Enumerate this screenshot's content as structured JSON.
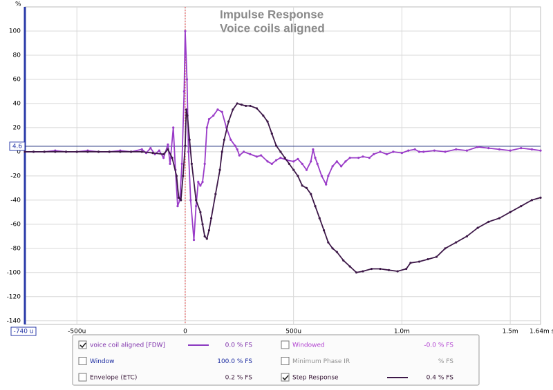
{
  "chart_data": {
    "type": "line",
    "title": "Impulse Response",
    "subtitle": "Voice coils aligned",
    "y_unit": "%",
    "x_start_label": "-740 u",
    "x_end_label": "1.64m s",
    "cursor_value": 4.6,
    "xlim": [
      -740,
      1640
    ],
    "ylim": [
      -143,
      120
    ],
    "xticks": [
      {
        "value": -500,
        "label": "-500u"
      },
      0,
      {
        "value": 500,
        "label": "500u"
      },
      {
        "value": 1000,
        "label": "1.0m"
      },
      {
        "value": 1500,
        "label": "1.5m"
      }
    ],
    "yticks": [
      -140,
      -120,
      -100,
      -80,
      -60,
      -40,
      -20,
      0,
      20,
      40,
      60,
      80,
      100
    ],
    "grid": true,
    "series": [
      {
        "name": "voice coil aligned [FDW]",
        "color": "#9a3cc8",
        "x": [
          -740,
          -700,
          -650,
          -600,
          -550,
          -500,
          -450,
          -400,
          -350,
          -300,
          -250,
          -200,
          -180,
          -160,
          -140,
          -120,
          -100,
          -80,
          -70,
          -55,
          -45,
          -35,
          -25,
          -15,
          -5,
          0,
          8,
          15,
          25,
          40,
          50,
          60,
          70,
          80,
          90,
          100,
          110,
          130,
          150,
          170,
          190,
          210,
          230,
          240,
          250,
          270,
          300,
          330,
          350,
          380,
          400,
          420,
          440,
          470,
          500,
          520,
          540,
          560,
          580,
          590,
          600,
          610,
          630,
          650,
          660,
          680,
          700,
          720,
          740,
          760,
          800,
          820,
          850,
          870,
          900,
          930,
          960,
          1000,
          1030,
          1060,
          1080,
          1100,
          1150,
          1200,
          1250,
          1300,
          1350,
          1400,
          1450,
          1500,
          1550,
          1600,
          1640
        ],
        "values": [
          0,
          0,
          0,
          1,
          0,
          0,
          1,
          0,
          0,
          1,
          0,
          2,
          -1,
          3,
          -2,
          1,
          -5,
          6,
          -10,
          20,
          -15,
          -45,
          -40,
          -10,
          50,
          100,
          60,
          0,
          -40,
          -73,
          -45,
          -25,
          -28,
          -25,
          -10,
          20,
          27,
          30,
          35,
          33,
          20,
          10,
          5,
          2,
          -3,
          0,
          -2,
          -4,
          -3,
          -8,
          -10,
          -7,
          -5,
          -7,
          -8,
          -6,
          -10,
          -15,
          -8,
          2,
          -5,
          -10,
          -20,
          -27,
          -20,
          -12,
          -8,
          -12,
          -8,
          -5,
          -5,
          -4,
          -5,
          -2,
          0,
          -2,
          0,
          -1,
          1,
          2,
          0,
          0,
          1,
          0,
          2,
          1,
          4,
          3,
          2,
          1,
          3,
          2,
          1
        ]
      },
      {
        "name": "Step Response",
        "color": "#3d1848",
        "x": [
          -740,
          -700,
          -650,
          -600,
          -550,
          -500,
          -450,
          -400,
          -350,
          -300,
          -250,
          -200,
          -150,
          -100,
          -80,
          -60,
          -40,
          -30,
          -20,
          -10,
          0,
          5,
          10,
          20,
          30,
          50,
          70,
          80,
          90,
          100,
          110,
          120,
          140,
          160,
          170,
          180,
          200,
          220,
          240,
          260,
          280,
          300,
          330,
          360,
          380,
          400,
          420,
          440,
          460,
          480,
          500,
          520,
          540,
          560,
          580,
          600,
          620,
          640,
          660,
          680,
          700,
          730,
          760,
          790,
          820,
          860,
          900,
          940,
          980,
          1020,
          1040,
          1080,
          1120,
          1160,
          1200,
          1250,
          1300,
          1350,
          1400,
          1450,
          1500,
          1550,
          1600,
          1640
        ],
        "values": [
          0,
          0,
          0,
          0,
          0,
          0,
          0,
          0,
          0,
          0,
          0,
          0,
          -1,
          -2,
          2,
          -5,
          -20,
          -38,
          -40,
          -20,
          5,
          35,
          30,
          10,
          -10,
          -40,
          -50,
          -60,
          -70,
          -72,
          -65,
          -55,
          -35,
          -15,
          0,
          10,
          25,
          35,
          40,
          39,
          38,
          38,
          36,
          30,
          25,
          15,
          5,
          0,
          -5,
          -10,
          -15,
          -20,
          -28,
          -30,
          -35,
          -45,
          -55,
          -65,
          -75,
          -80,
          -83,
          -90,
          -95,
          -100,
          -99,
          -97,
          -97,
          -98,
          -99,
          -97,
          -92,
          -91,
          -89,
          -87,
          -80,
          -75,
          -70,
          -63,
          -58,
          -55,
          -50,
          -45,
          -40,
          -38
        ]
      }
    ]
  },
  "legend": [
    {
      "name": "voice coil aligned [FDW]",
      "checked": true,
      "value": "0.0 % FS",
      "color": "#7a2aa8",
      "line": "#8a38c0"
    },
    {
      "name": "Windowed",
      "checked": false,
      "value": "-0.0 % FS",
      "color": "#b040d0",
      "line": null
    },
    {
      "name": "Window",
      "checked": false,
      "value": "100.0 % FS",
      "color": "#1a2aa0",
      "line": null
    },
    {
      "name": "Minimum Phase IR",
      "checked": false,
      "value": "% FS",
      "color": "#909090",
      "line": null
    },
    {
      "name": "Envelope (ETC)",
      "checked": false,
      "value": "0.2 % FS",
      "color": "#402040",
      "line": null
    },
    {
      "name": "Step Response",
      "checked": true,
      "value": "0.4 % FS",
      "color": "#301030",
      "line": "#3d1848"
    }
  ]
}
